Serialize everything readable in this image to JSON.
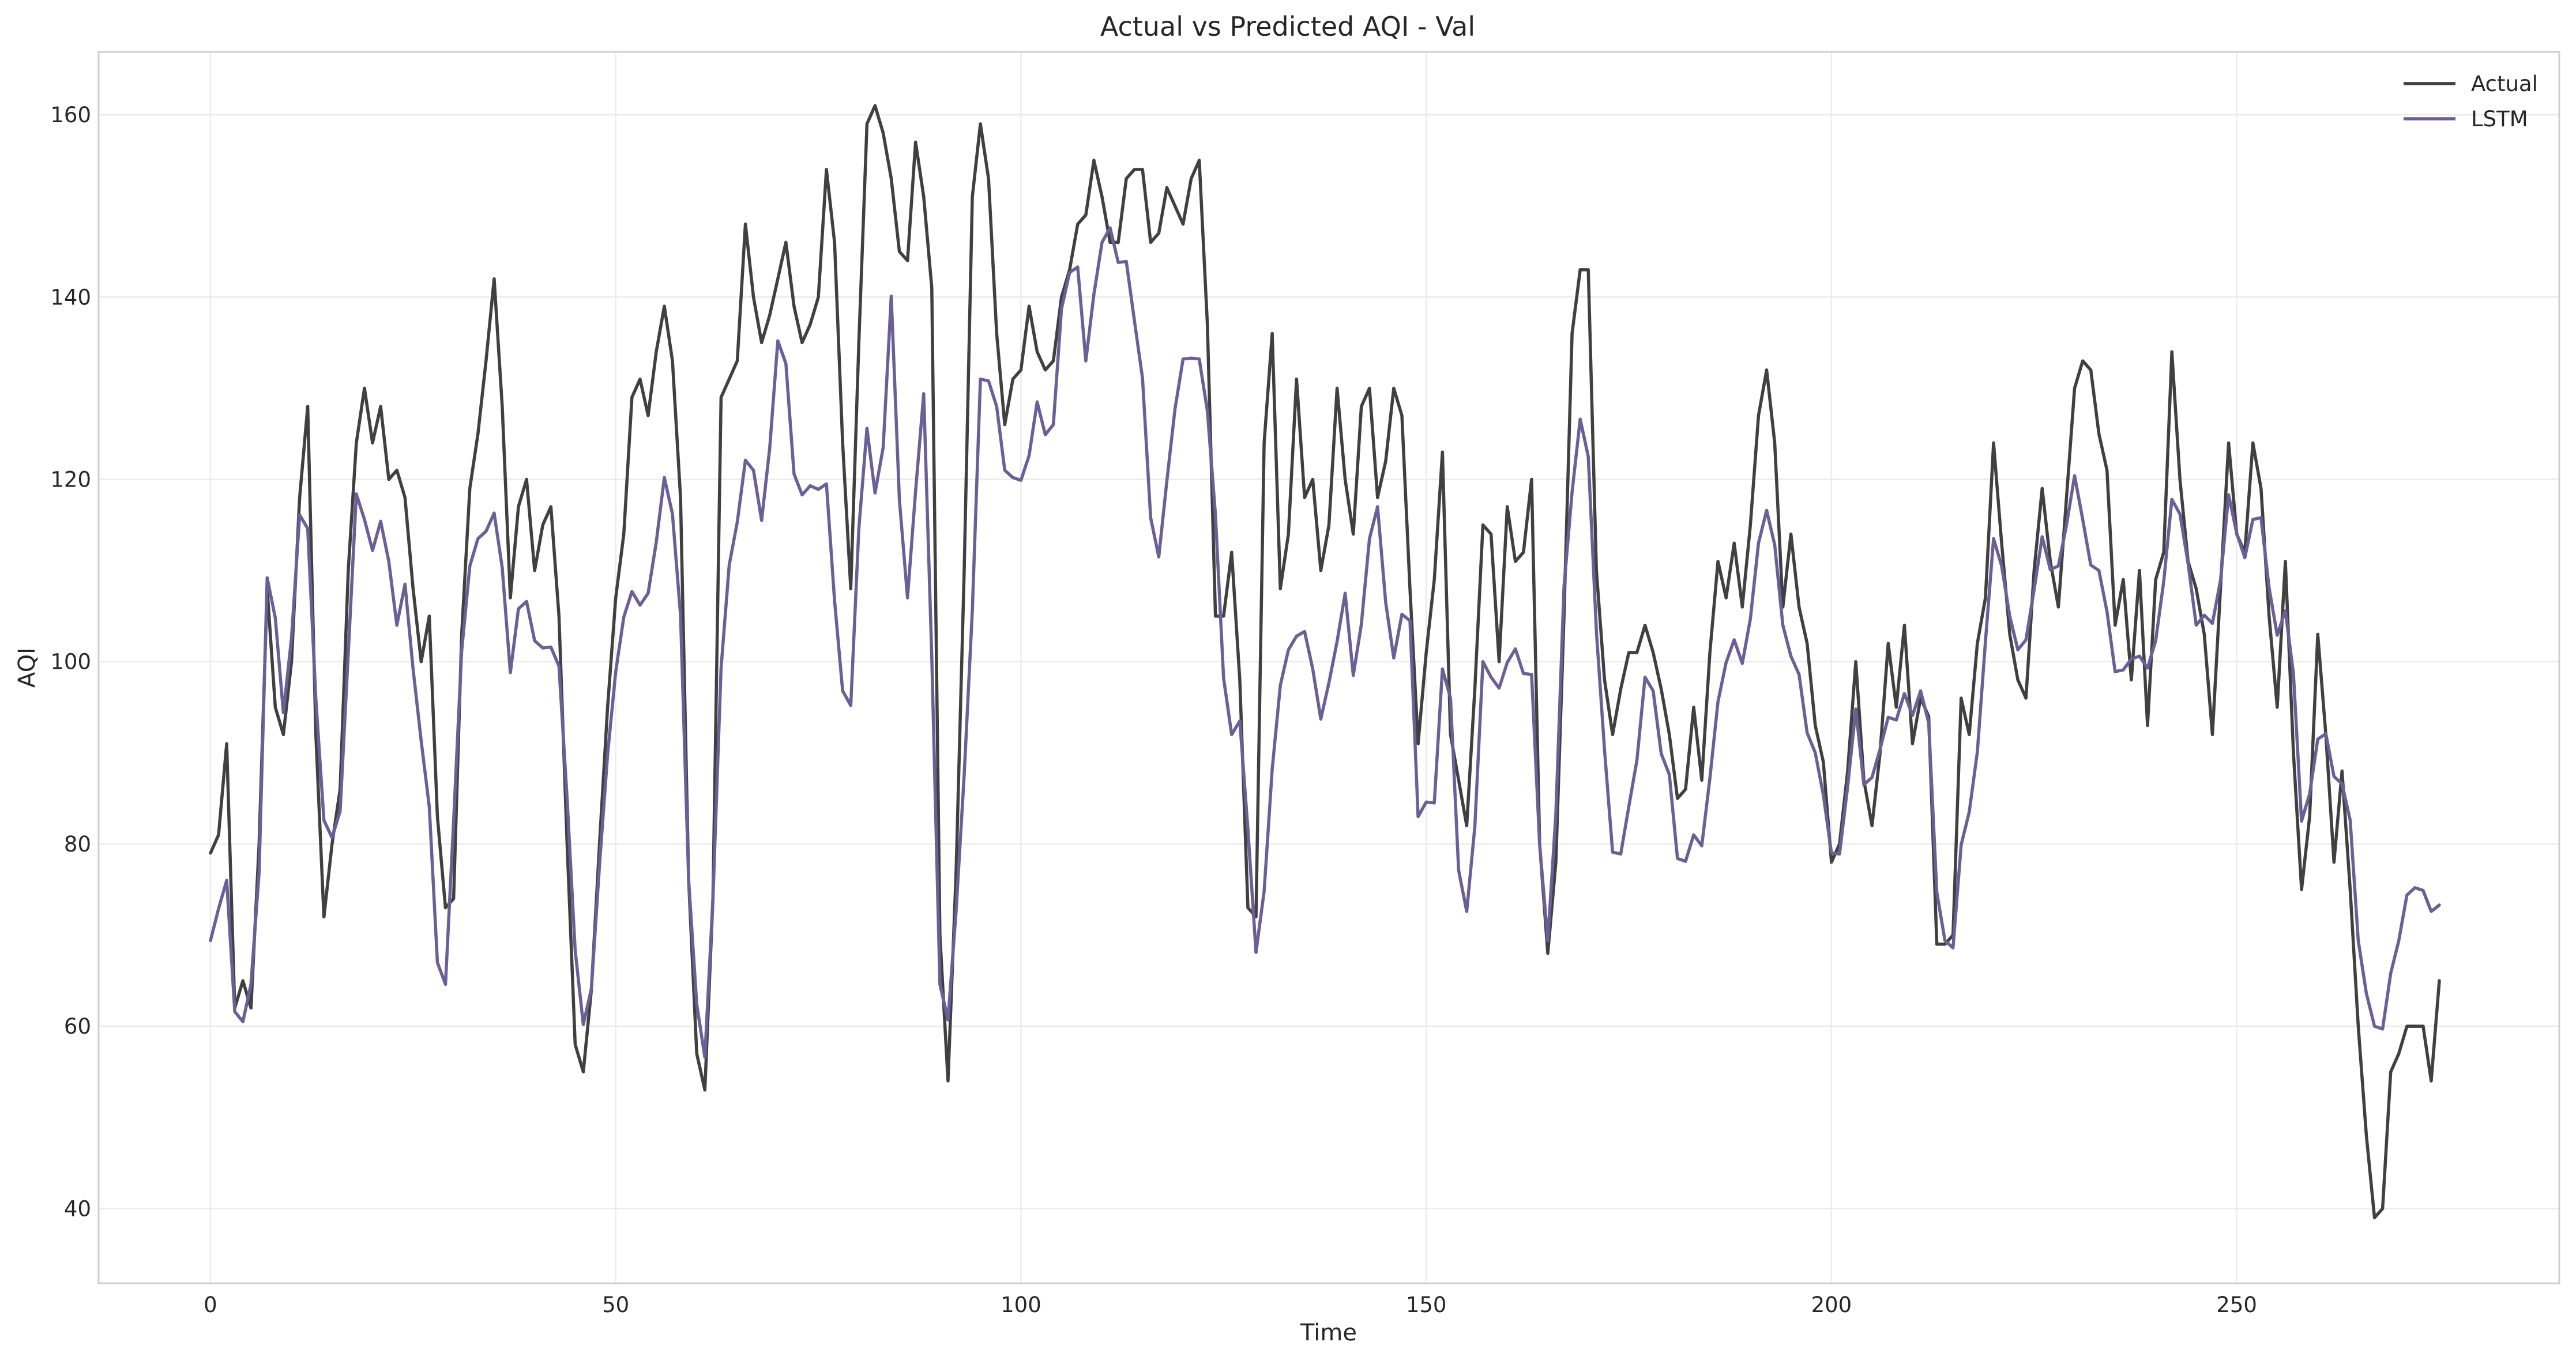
{
  "chart_data": {
    "type": "line",
    "title": "Actual vs Predicted AQI - Val",
    "xlabel": "Time",
    "ylabel": "AQI",
    "xlim": [
      -13.8,
      289.8
    ],
    "ylim": [
      31.8,
      166.9
    ],
    "xticks": [
      0,
      50,
      100,
      150,
      200,
      250
    ],
    "yticks": [
      40,
      60,
      80,
      100,
      120,
      140,
      160
    ],
    "grid": true,
    "legend_position": "top-right",
    "series": [
      {
        "name": "Actual",
        "color": "#404040",
        "values": [
          79,
          81,
          91,
          62,
          65,
          62,
          80,
          108,
          95,
          92,
          100,
          118,
          128,
          92,
          72,
          80,
          86,
          110,
          124,
          130,
          124,
          128,
          120,
          121,
          118,
          108,
          100,
          105,
          83,
          73,
          74,
          103,
          119,
          125,
          133,
          142,
          128,
          107,
          117,
          120,
          110,
          115,
          117,
          105,
          80,
          58,
          55,
          64,
          80,
          95,
          107,
          114,
          129,
          131,
          127,
          134,
          139,
          133,
          118,
          76,
          57,
          53,
          74,
          129,
          131,
          133,
          148,
          140,
          135,
          138,
          142,
          146,
          139,
          135,
          137,
          140,
          154,
          146,
          124,
          108,
          135,
          159,
          161,
          158,
          153,
          145,
          144,
          157,
          151,
          141,
          70,
          54,
          77,
          110,
          151,
          159,
          153,
          136,
          126,
          131,
          132,
          139,
          134,
          132,
          133,
          140,
          143,
          148,
          149,
          155,
          151,
          146,
          146,
          153,
          154,
          154,
          146,
          147,
          152,
          150,
          148,
          153,
          155,
          137,
          105,
          105,
          112,
          98,
          73,
          72,
          124,
          136,
          108,
          114,
          131,
          118,
          120,
          110,
          115,
          130,
          120,
          114,
          128,
          130,
          118,
          122,
          130,
          127,
          108,
          91,
          101,
          109,
          123,
          92,
          87,
          82,
          97,
          115,
          114,
          100,
          117,
          111,
          112,
          120,
          80,
          68,
          78,
          105,
          136,
          143,
          143,
          110,
          98,
          92,
          97,
          101,
          101,
          104,
          101,
          97,
          92,
          85,
          86,
          95,
          87,
          101,
          111,
          107,
          113,
          106,
          115,
          127,
          132,
          124,
          106,
          114,
          106,
          102,
          93,
          89,
          78,
          80,
          88,
          100,
          87,
          82,
          90,
          102,
          95,
          104,
          91,
          96,
          94,
          69,
          69,
          70,
          96,
          92,
          102,
          107,
          124,
          113,
          103,
          98,
          96,
          110,
          119,
          111,
          106,
          118,
          130,
          133,
          132,
          125,
          121,
          104,
          109,
          98,
          110,
          93,
          109,
          112,
          134,
          120,
          111,
          108,
          103,
          92,
          108,
          124,
          114,
          112,
          124,
          119,
          105,
          95,
          111,
          90,
          75,
          83,
          103,
          92,
          78,
          88,
          75,
          60,
          48,
          39,
          40,
          55,
          57,
          60,
          60,
          60,
          54,
          65
        ]
      },
      {
        "name": "LSTM",
        "color": "#6a5f96",
        "values": [
          69.4,
          72.9,
          76.0,
          61.6,
          60.5,
          64.6,
          76.9,
          109.2,
          104.8,
          94.4,
          102.6,
          116.1,
          114.6,
          95.9,
          82.6,
          80.7,
          83.6,
          100.9,
          118.4,
          115.6,
          112.2,
          115.4,
          111.0,
          104.0,
          108.5,
          99.2,
          91.3,
          84.1,
          67.0,
          64.6,
          82.5,
          101.2,
          110.5,
          113.5,
          114.3,
          116.3,
          110.3,
          98.8,
          105.8,
          106.6,
          102.3,
          101.5,
          101.6,
          99.5,
          85.0,
          68.3,
          60.2,
          64.1,
          77.7,
          89.8,
          98.9,
          104.9,
          107.7,
          106.2,
          107.5,
          113.1,
          120.2,
          116.2,
          105.1,
          76.0,
          62.4,
          56.6,
          74.0,
          99.3,
          110.6,
          115.3,
          122.1,
          121.0,
          115.5,
          123.4,
          135.2,
          132.7,
          120.6,
          118.3,
          119.3,
          118.9,
          119.5,
          106.7,
          96.8,
          95.2,
          114.6,
          125.6,
          118.5,
          123.5,
          140.1,
          117.8,
          107.0,
          118.7,
          129.4,
          100.5,
          64.6,
          60.7,
          72.7,
          87.6,
          105.6,
          131.0,
          130.8,
          128.0,
          121.0,
          120.2,
          119.9,
          122.6,
          128.5,
          124.9,
          126.0,
          138.7,
          142.7,
          143.3,
          133.0,
          140.3,
          146.0,
          147.6,
          143.8,
          143.9,
          137.4,
          131.1,
          115.8,
          111.5,
          119.8,
          127.7,
          133.2,
          133.3,
          133.2,
          127.5,
          116.1,
          98.2,
          92.0,
          93.5,
          81.6,
          68.1,
          74.8,
          88.2,
          97.4,
          101.3,
          102.8,
          103.3,
          99.2,
          93.7,
          97.7,
          102.2,
          107.5,
          98.5,
          104.1,
          113.5,
          117.0,
          106.5,
          100.4,
          105.2,
          104.5,
          83.0,
          84.6,
          84.5,
          99.2,
          96.0,
          77.1,
          72.6,
          81.9,
          100.0,
          98.3,
          97.1,
          99.9,
          101.4,
          98.7,
          98.6,
          79.9,
          69.4,
          83.3,
          108.2,
          118.6,
          126.6,
          122.5,
          103.3,
          90.3,
          79.1,
          78.9,
          84.1,
          89.2,
          98.3,
          96.8,
          89.9,
          87.6,
          78.4,
          78.1,
          81.0,
          79.8,
          87.2,
          95.6,
          99.9,
          102.4,
          99.8,
          104.7,
          113.0,
          116.6,
          112.8,
          104.0,
          100.6,
          98.6,
          92.2,
          90.0,
          85.4,
          79.0,
          78.9,
          86.3,
          94.8,
          86.5,
          87.3,
          90.4,
          93.9,
          93.6,
          96.5,
          94.1,
          96.8,
          93.3,
          74.7,
          69.4,
          68.6,
          79.9,
          83.5,
          90.1,
          102.2,
          113.5,
          110.5,
          105.0,
          101.3,
          102.4,
          107.9,
          113.7,
          110.1,
          110.5,
          115.0,
          120.4,
          115.6,
          110.6,
          110.0,
          105.5,
          98.9,
          99.1,
          100.3,
          100.6,
          99.3,
          102.3,
          108.8,
          117.8,
          116.2,
          110.8,
          104.0,
          105.1,
          104.2,
          108.9,
          118.3,
          114.1,
          111.4,
          115.6,
          115.8,
          108.1,
          102.9,
          105.6,
          98.7,
          82.5,
          85.5,
          91.5,
          92.1,
          87.4,
          86.6,
          82.6,
          69.4,
          63.6,
          60.0,
          59.7,
          65.8,
          69.4,
          74.4,
          75.2,
          74.9,
          72.6,
          73.3
        ]
      }
    ]
  }
}
